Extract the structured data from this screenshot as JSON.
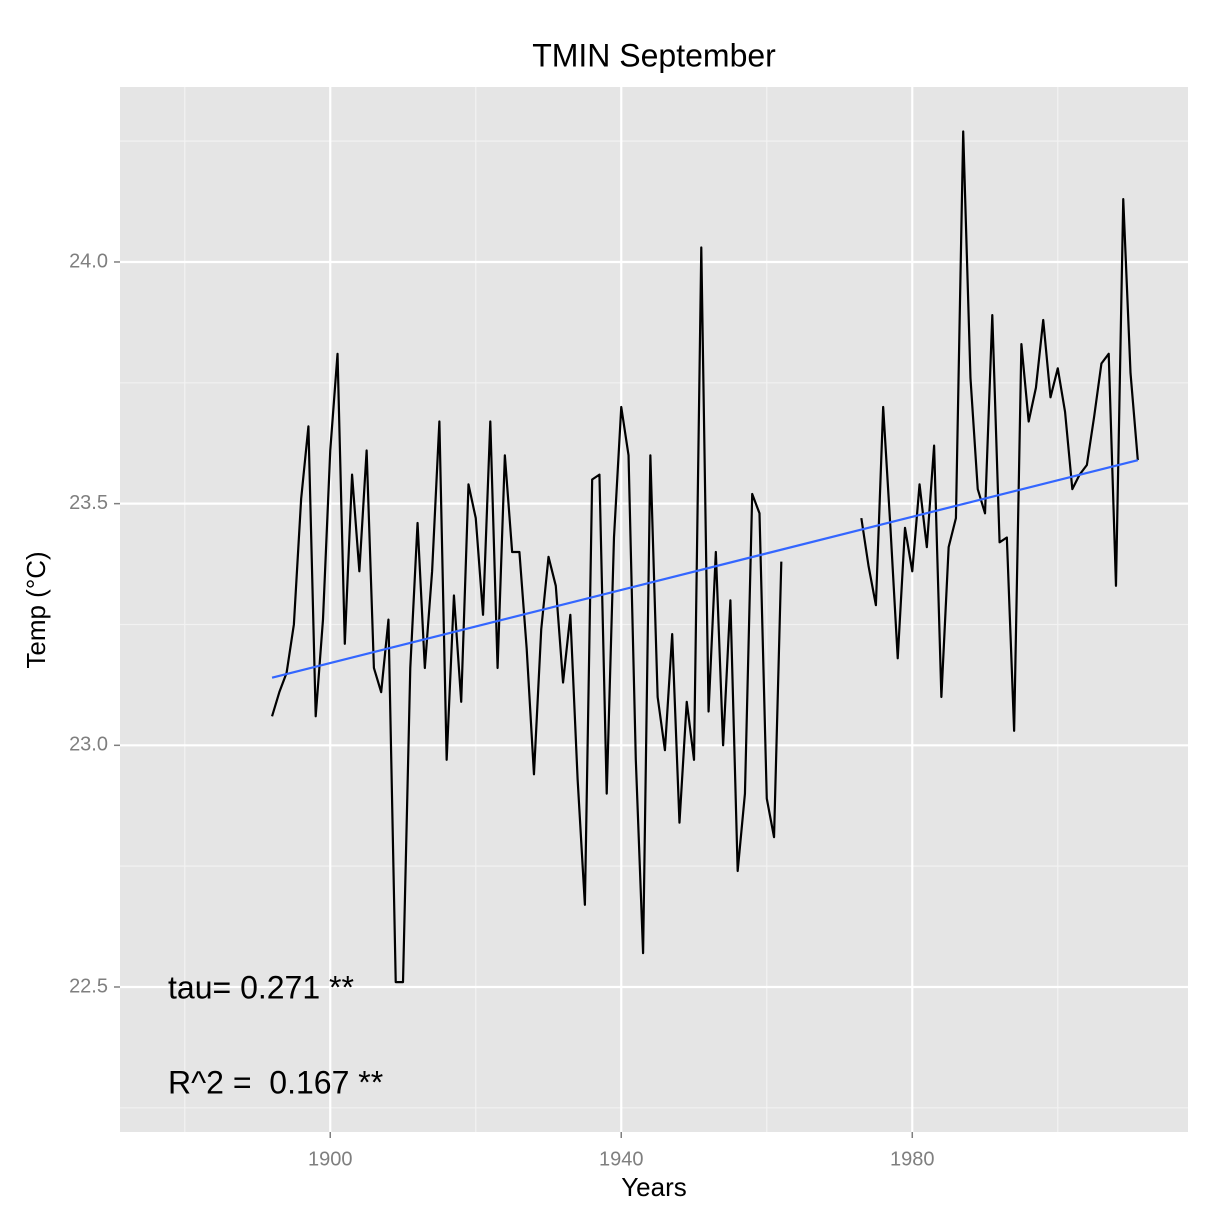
{
  "chart_data": {
    "type": "line",
    "title": "TMIN September",
    "x_label": "Years",
    "y_label": "Temp (°C)",
    "x": [
      1892,
      1893,
      1894,
      1895,
      1896,
      1897,
      1898,
      1899,
      1900,
      1901,
      1902,
      1903,
      1904,
      1905,
      1906,
      1907,
      1908,
      1909,
      1910,
      1911,
      1912,
      1913,
      1914,
      1915,
      1916,
      1917,
      1918,
      1919,
      1920,
      1921,
      1922,
      1923,
      1924,
      1925,
      1926,
      1927,
      1928,
      1929,
      1930,
      1931,
      1932,
      1933,
      1934,
      1935,
      1936,
      1937,
      1938,
      1939,
      1940,
      1941,
      1942,
      1943,
      1944,
      1945,
      1946,
      1947,
      1948,
      1949,
      1950,
      1951,
      1952,
      1953,
      1954,
      1955,
      1956,
      1957,
      1958,
      1959,
      1960,
      1961,
      1962,
      1963,
      1964,
      1965,
      1966,
      1967,
      1968,
      1969,
      1970,
      1971,
      1972,
      1973,
      1974,
      1975,
      1976,
      1977,
      1978,
      1979,
      1980,
      1981,
      1982,
      1983,
      1984,
      1985,
      1986,
      1987,
      1988,
      1989,
      1990,
      1991,
      1992,
      1993,
      1994,
      1995,
      1996,
      1997,
      1998,
      1999,
      2000,
      2001,
      2002,
      2003,
      2004,
      2005,
      2006,
      2007,
      2008,
      2009,
      2010,
      2011
    ],
    "series": [
      {
        "color": "#000000",
        "values": [
          23.06,
          23.11,
          23.15,
          23.25,
          23.51,
          23.66,
          23.06,
          23.26,
          23.61,
          23.81,
          23.21,
          23.56,
          23.36,
          23.61,
          23.16,
          23.11,
          23.26,
          22.51,
          22.51,
          23.16,
          23.46,
          23.16,
          23.36,
          23.67,
          22.97,
          23.31,
          23.09,
          23.54,
          23.47,
          23.27,
          23.67,
          23.16,
          23.6,
          23.4,
          23.4,
          23.2,
          22.94,
          23.24,
          23.39,
          23.33,
          23.13,
          23.27,
          22.93,
          22.67,
          23.55,
          23.56,
          22.9,
          23.43,
          23.7,
          23.6,
          22.97,
          22.57,
          23.6,
          23.1,
          22.99,
          23.23,
          22.84,
          23.09,
          22.97,
          24.03,
          23.07,
          23.4,
          23.0,
          23.3,
          22.74,
          22.9,
          23.52,
          23.48,
          22.89,
          22.81,
          23.38,
          null,
          null,
          null,
          null,
          null,
          null,
          null,
          null,
          null,
          null,
          23.47,
          23.37,
          23.29,
          23.7,
          23.45,
          23.18,
          23.45,
          23.36,
          23.54,
          23.41,
          23.62,
          23.1,
          23.41,
          23.47,
          24.27,
          23.76,
          23.53,
          23.48,
          23.89,
          23.42,
          23.43,
          23.03,
          23.83,
          23.67,
          23.74,
          23.88,
          23.72,
          23.78,
          23.69,
          23.53,
          23.56,
          23.58,
          23.68,
          23.79,
          23.81,
          23.33,
          24.13,
          23.77,
          23.59
        ]
      }
    ],
    "trend": {
      "color": "#3366ff",
      "x": [
        1892,
        2011
      ],
      "values": [
        23.14,
        23.59
      ]
    },
    "annotations": [
      "tau= 0.271 **",
      "R^2 =  0.167 **"
    ],
    "xlim": [
      1871.1,
      2017.9
    ],
    "ylim": [
      22.2,
      24.362
    ],
    "xticks": [
      1900,
      1940,
      1980
    ],
    "yticks": [
      22.5,
      {
        "value": 23,
        "label": "23.0"
      },
      23.5,
      {
        "value": 24,
        "label": "24.0"
      }
    ],
    "minor_xticks": [
      1880,
      1920,
      1960,
      2000
    ],
    "minor_yticks": [
      22.25,
      22.75,
      23.25,
      23.75,
      24.25
    ],
    "grid": true
  }
}
